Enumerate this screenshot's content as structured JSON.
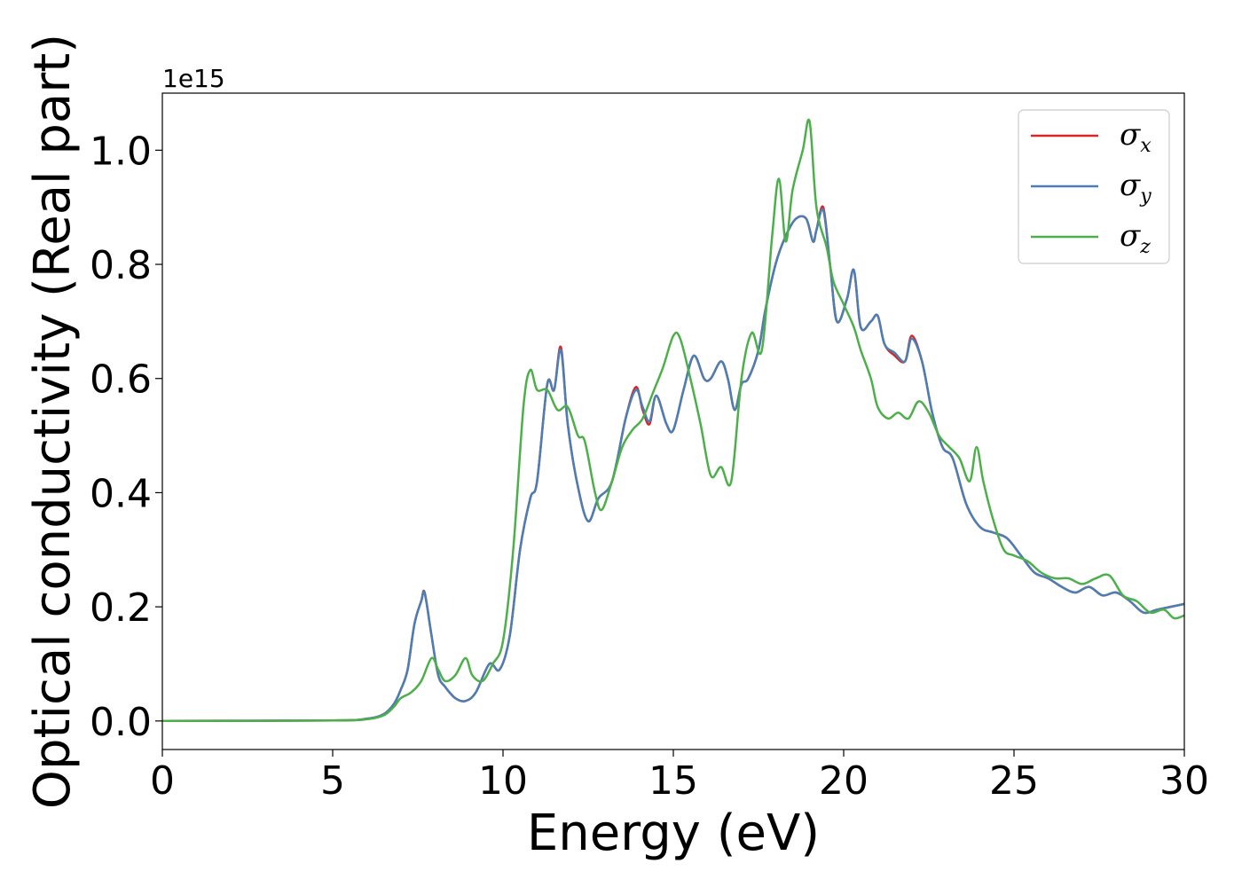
{
  "chart_data": {
    "type": "line",
    "xlabel": "Energy (eV)",
    "ylabel": "Optical conductivity (Real part)",
    "y_offset_text": "1e15",
    "xlim": [
      0,
      30
    ],
    "ylim": [
      -0.05,
      1.1
    ],
    "x_ticks": [
      0,
      5,
      10,
      15,
      20,
      25,
      30
    ],
    "x_tick_labels": [
      "0",
      "5",
      "10",
      "15",
      "20",
      "25",
      "30"
    ],
    "y_ticks": [
      0.0,
      0.2,
      0.4,
      0.6,
      0.8,
      1.0
    ],
    "y_tick_labels": [
      "0.0",
      "0.2",
      "0.4",
      "0.6",
      "0.8",
      "1.0"
    ],
    "grid": false,
    "legend_position": "top-right",
    "legend": [
      {
        "symbol": "σ",
        "sub": "x",
        "color": "#d62728"
      },
      {
        "symbol": "σ",
        "sub": "y",
        "color": "#4a7fb5"
      },
      {
        "symbol": "σ",
        "sub": "z",
        "color": "#4daf4a"
      }
    ],
    "series": [
      {
        "name": "σx",
        "color": "#d62728",
        "x": [
          0,
          5,
          6,
          6.5,
          6.8,
          7.0,
          7.2,
          7.4,
          7.6,
          7.7,
          7.9,
          8.1,
          8.3,
          8.6,
          8.9,
          9.2,
          9.6,
          9.9,
          10.2,
          10.5,
          10.8,
          11.0,
          11.3,
          11.5,
          11.7,
          11.9,
          12.2,
          12.5,
          12.8,
          13.2,
          13.6,
          13.9,
          14.1,
          14.3,
          14.5,
          14.8,
          15.0,
          15.3,
          15.6,
          15.9,
          16.1,
          16.4,
          16.6,
          16.8,
          17.0,
          17.2,
          17.5,
          17.7,
          18.0,
          18.3,
          18.6,
          18.9,
          19.1,
          19.2,
          19.4,
          19.6,
          19.8,
          20.1,
          20.3,
          20.5,
          20.8,
          21.0,
          21.2,
          21.5,
          21.8,
          22.0,
          22.3,
          22.6,
          22.9,
          23.2,
          23.6,
          24.0,
          24.4,
          24.8,
          25.2,
          25.6,
          26.0,
          26.4,
          26.8,
          27.2,
          27.6,
          28.0,
          28.4,
          28.8,
          29.2,
          29.6,
          30
        ],
        "y": [
          0,
          0.001,
          0.004,
          0.012,
          0.03,
          0.055,
          0.09,
          0.17,
          0.21,
          0.225,
          0.15,
          0.08,
          0.06,
          0.04,
          0.035,
          0.05,
          0.1,
          0.09,
          0.15,
          0.3,
          0.39,
          0.42,
          0.59,
          0.58,
          0.655,
          0.52,
          0.41,
          0.35,
          0.39,
          0.42,
          0.53,
          0.585,
          0.545,
          0.52,
          0.57,
          0.52,
          0.51,
          0.58,
          0.64,
          0.6,
          0.6,
          0.63,
          0.6,
          0.545,
          0.59,
          0.6,
          0.65,
          0.72,
          0.8,
          0.85,
          0.88,
          0.88,
          0.84,
          0.86,
          0.9,
          0.8,
          0.7,
          0.74,
          0.79,
          0.69,
          0.7,
          0.71,
          0.66,
          0.64,
          0.63,
          0.675,
          0.63,
          0.54,
          0.48,
          0.46,
          0.38,
          0.34,
          0.33,
          0.32,
          0.29,
          0.26,
          0.25,
          0.235,
          0.225,
          0.235,
          0.22,
          0.225,
          0.21,
          0.19,
          0.195,
          0.2,
          0.205
        ]
      },
      {
        "name": "σy",
        "color": "#4a7fb5",
        "x": [
          0,
          5,
          6,
          6.5,
          6.8,
          7.0,
          7.2,
          7.4,
          7.6,
          7.7,
          7.9,
          8.1,
          8.3,
          8.6,
          8.9,
          9.2,
          9.6,
          9.9,
          10.2,
          10.5,
          10.8,
          11.0,
          11.3,
          11.5,
          11.7,
          11.9,
          12.2,
          12.5,
          12.8,
          13.2,
          13.6,
          13.9,
          14.1,
          14.3,
          14.5,
          14.8,
          15.0,
          15.3,
          15.6,
          15.9,
          16.1,
          16.4,
          16.6,
          16.8,
          17.0,
          17.2,
          17.5,
          17.7,
          18.0,
          18.3,
          18.6,
          18.9,
          19.1,
          19.2,
          19.4,
          19.6,
          19.8,
          20.1,
          20.3,
          20.5,
          20.8,
          21.0,
          21.2,
          21.5,
          21.8,
          22.0,
          22.3,
          22.6,
          22.9,
          23.2,
          23.6,
          24.0,
          24.4,
          24.8,
          25.2,
          25.6,
          26.0,
          26.4,
          26.8,
          27.2,
          27.6,
          28.0,
          28.4,
          28.8,
          29.2,
          29.6,
          30
        ],
        "y": [
          0,
          0.001,
          0.004,
          0.012,
          0.03,
          0.055,
          0.09,
          0.17,
          0.21,
          0.224,
          0.15,
          0.08,
          0.06,
          0.04,
          0.035,
          0.05,
          0.1,
          0.09,
          0.15,
          0.3,
          0.39,
          0.42,
          0.59,
          0.58,
          0.65,
          0.52,
          0.41,
          0.35,
          0.39,
          0.42,
          0.53,
          0.58,
          0.55,
          0.525,
          0.57,
          0.52,
          0.51,
          0.58,
          0.64,
          0.6,
          0.6,
          0.63,
          0.6,
          0.545,
          0.59,
          0.6,
          0.65,
          0.72,
          0.8,
          0.85,
          0.88,
          0.88,
          0.84,
          0.86,
          0.895,
          0.8,
          0.7,
          0.74,
          0.79,
          0.69,
          0.7,
          0.71,
          0.66,
          0.645,
          0.63,
          0.67,
          0.63,
          0.54,
          0.48,
          0.46,
          0.38,
          0.34,
          0.33,
          0.32,
          0.29,
          0.26,
          0.25,
          0.235,
          0.225,
          0.235,
          0.22,
          0.225,
          0.21,
          0.19,
          0.195,
          0.2,
          0.205
        ]
      },
      {
        "name": "σz",
        "color": "#4daf4a",
        "x": [
          0,
          5,
          6,
          6.5,
          6.8,
          7.0,
          7.3,
          7.6,
          7.9,
          8.1,
          8.3,
          8.6,
          8.9,
          9.1,
          9.4,
          9.7,
          10.0,
          10.3,
          10.6,
          10.8,
          11.0,
          11.3,
          11.6,
          11.9,
          12.2,
          12.4,
          12.7,
          12.9,
          13.2,
          13.5,
          13.8,
          14.1,
          14.4,
          14.7,
          15.0,
          15.2,
          15.5,
          15.8,
          16.1,
          16.4,
          16.7,
          17.0,
          17.3,
          17.6,
          17.9,
          18.1,
          18.3,
          18.5,
          18.8,
          19.0,
          19.2,
          19.5,
          19.7,
          20.0,
          20.3,
          20.5,
          20.8,
          21.0,
          21.3,
          21.6,
          21.9,
          22.2,
          22.5,
          22.8,
          23.1,
          23.4,
          23.7,
          23.9,
          24.1,
          24.4,
          24.7,
          25.0,
          25.4,
          25.8,
          26.2,
          26.6,
          27.0,
          27.4,
          27.8,
          28.2,
          28.6,
          29.0,
          29.4,
          29.7,
          30
        ],
        "y": [
          0,
          0.001,
          0.003,
          0.01,
          0.025,
          0.04,
          0.05,
          0.07,
          0.11,
          0.09,
          0.07,
          0.08,
          0.11,
          0.08,
          0.07,
          0.1,
          0.14,
          0.3,
          0.55,
          0.615,
          0.58,
          0.58,
          0.545,
          0.55,
          0.5,
          0.49,
          0.4,
          0.37,
          0.42,
          0.48,
          0.51,
          0.53,
          0.575,
          0.62,
          0.675,
          0.67,
          0.6,
          0.52,
          0.43,
          0.445,
          0.42,
          0.6,
          0.68,
          0.65,
          0.85,
          0.95,
          0.84,
          0.93,
          1.0,
          1.05,
          0.9,
          0.83,
          0.77,
          0.73,
          0.69,
          0.65,
          0.6,
          0.55,
          0.53,
          0.54,
          0.53,
          0.56,
          0.54,
          0.5,
          0.48,
          0.46,
          0.42,
          0.48,
          0.42,
          0.35,
          0.3,
          0.29,
          0.28,
          0.26,
          0.25,
          0.25,
          0.24,
          0.25,
          0.255,
          0.22,
          0.21,
          0.19,
          0.195,
          0.18,
          0.185
        ]
      }
    ]
  }
}
